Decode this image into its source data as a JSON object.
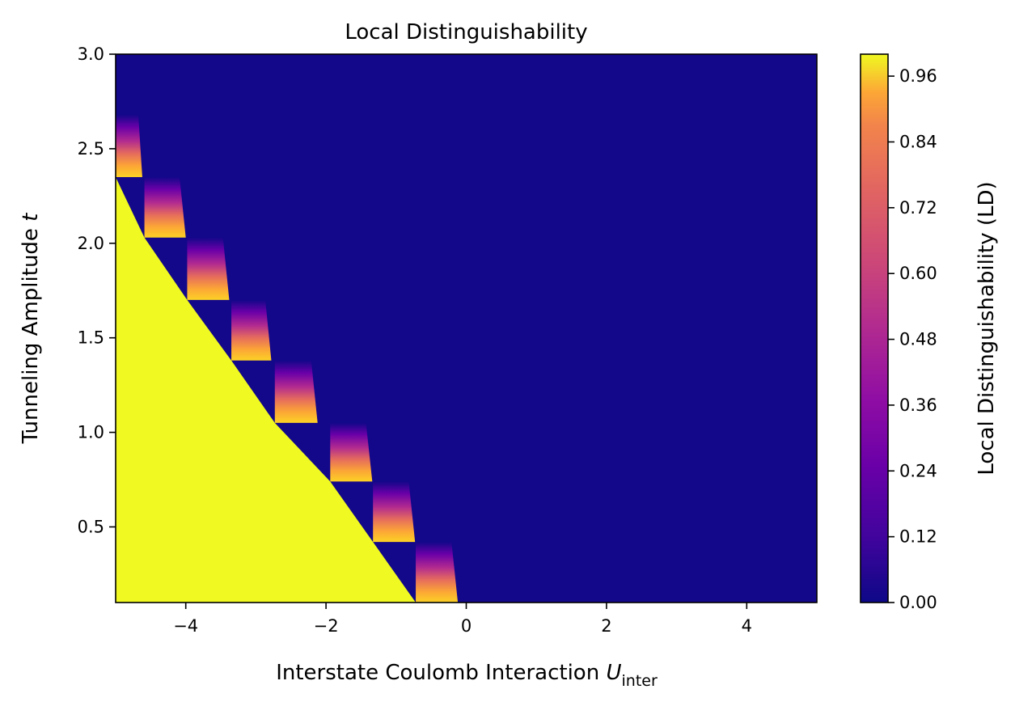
{
  "chart_data": {
    "type": "heatmap",
    "title": "Local Distinguishability",
    "xlabel_main": "Interstate Coulomb Interaction ",
    "xlabel_symbol": "U",
    "xlabel_subscript": "inter",
    "ylabel_main": "Tunneling Amplitude ",
    "ylabel_symbol": "t",
    "colorbar_label": "Local Distinguishability (LD)",
    "colormap": "plasma",
    "xlim": [
      -5,
      5
    ],
    "ylim": [
      0.1,
      3.0
    ],
    "x_ticks": [
      {
        "value": -4,
        "label": "−4"
      },
      {
        "value": -2,
        "label": "−2"
      },
      {
        "value": 0,
        "label": "0"
      },
      {
        "value": 2,
        "label": "2"
      },
      {
        "value": 4,
        "label": "4"
      }
    ],
    "y_ticks": [
      {
        "value": 0.5,
        "label": "0.5"
      },
      {
        "value": 1.0,
        "label": "1.0"
      },
      {
        "value": 1.5,
        "label": "1.5"
      },
      {
        "value": 2.0,
        "label": "2.0"
      },
      {
        "value": 2.5,
        "label": "2.5"
      },
      {
        "value": 3.0,
        "label": "3.0"
      }
    ],
    "colorbar_range": [
      0.0,
      1.0
    ],
    "colorbar_ticks": [
      {
        "value": 0.0,
        "label": "0.00"
      },
      {
        "value": 0.12,
        "label": "0.12"
      },
      {
        "value": 0.24,
        "label": "0.24"
      },
      {
        "value": 0.36,
        "label": "0.36"
      },
      {
        "value": 0.48,
        "label": "0.48"
      },
      {
        "value": 0.6,
        "label": "0.60"
      },
      {
        "value": 0.72,
        "label": "0.72"
      },
      {
        "value": 0.84,
        "label": "0.84"
      },
      {
        "value": 0.96,
        "label": "0.96"
      }
    ],
    "background_value": 0.0,
    "region_value": 1.0,
    "boundary_steps": [
      {
        "t_low": 0.1,
        "t_high": 0.42,
        "u_left": -0.72,
        "u_right": -0.12
      },
      {
        "t_low": 0.42,
        "t_high": 0.74,
        "u_left": -1.33,
        "u_right": -0.73
      },
      {
        "t_low": 0.74,
        "t_high": 1.05,
        "u_left": -1.94,
        "u_right": -1.34
      },
      {
        "t_low": 1.05,
        "t_high": 1.38,
        "u_left": -2.73,
        "u_right": -2.12
      },
      {
        "t_low": 1.38,
        "t_high": 1.7,
        "u_left": -3.35,
        "u_right": -2.78
      },
      {
        "t_low": 1.7,
        "t_high": 2.03,
        "u_left": -3.98,
        "u_right": -3.38
      },
      {
        "t_low": 2.03,
        "t_high": 2.35,
        "u_left": -4.59,
        "u_right": -4.0
      },
      {
        "t_low": 2.35,
        "t_high": 2.68,
        "u_left": -5.0,
        "u_right": -4.62
      }
    ]
  }
}
